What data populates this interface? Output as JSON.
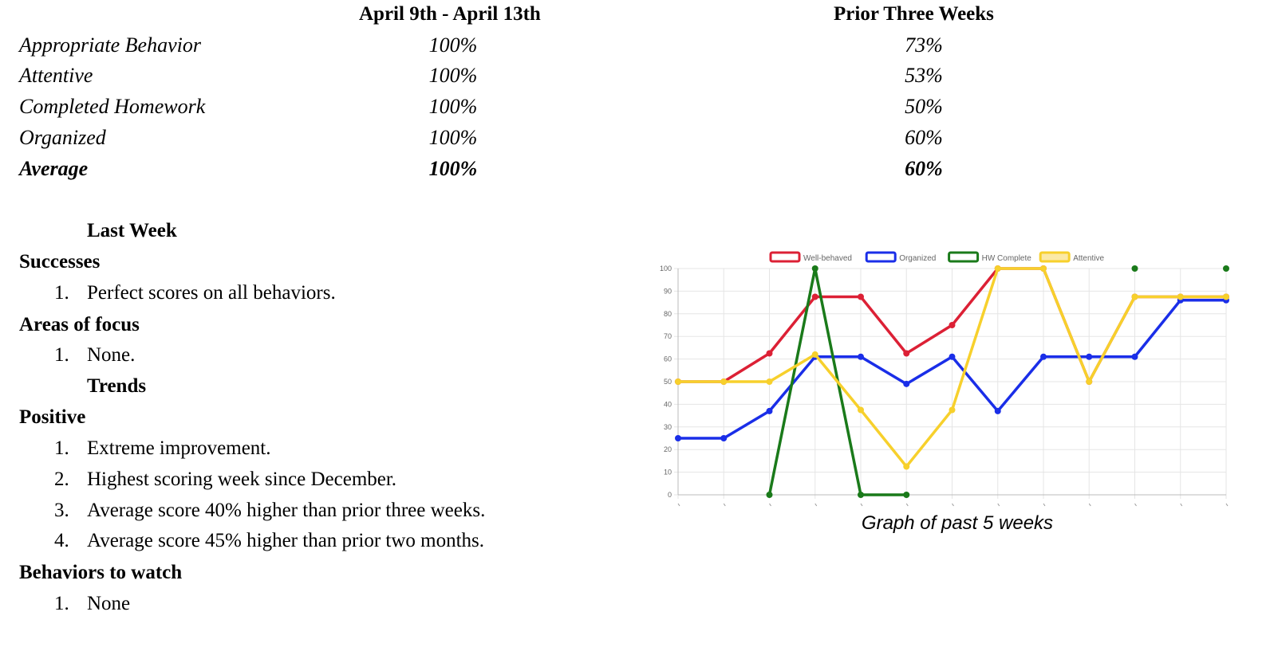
{
  "table": {
    "col1_header": "April 9th - April 13th",
    "col2_header": "Prior Three Weeks",
    "rows": [
      {
        "label": "Appropriate Behavior",
        "current": "100%",
        "prior": "73%"
      },
      {
        "label": "Attentive",
        "current": "100%",
        "prior": "53%"
      },
      {
        "label": "Completed Homework",
        "current": "100%",
        "prior": "50%"
      },
      {
        "label": "Organized",
        "current": "100%",
        "prior": "60%"
      },
      {
        "label": "Average",
        "current": "100%",
        "prior": "60%"
      }
    ]
  },
  "report": {
    "last_week_heading": "Last Week",
    "successes_heading": "Successes",
    "successes": [
      "Perfect scores on all behaviors."
    ],
    "focus_heading": "Areas of focus",
    "focus": [
      "None."
    ],
    "trends_heading": "Trends",
    "positive_heading": "Positive",
    "positive": [
      "Extreme improvement.",
      "Highest scoring week since December.",
      "Average score 40% higher than prior three weeks.",
      "Average score 45% higher than prior two months."
    ],
    "watch_heading": "Behaviors to watch",
    "watch": [
      "None"
    ]
  },
  "chart_caption": "Graph of past 5 weeks",
  "chart_data": {
    "type": "line",
    "x": [
      1,
      2,
      3,
      4,
      5,
      6,
      7,
      8,
      9,
      10,
      11,
      12,
      13
    ],
    "ylim": [
      0,
      100
    ],
    "yticks": [
      0,
      10,
      20,
      30,
      40,
      50,
      60,
      70,
      80,
      90,
      100
    ],
    "grid": true,
    "legend_position": "top",
    "series": [
      {
        "name": "Well-behaved",
        "color": "#dc2035",
        "values": [
          50,
          50,
          62.5,
          87.5,
          87.5,
          62.5,
          75,
          100,
          100,
          50,
          87.5,
          87.5,
          87.5
        ]
      },
      {
        "name": "Organized",
        "color": "#1a2ee8",
        "values": [
          25,
          25,
          37,
          61,
          61,
          49,
          61,
          37,
          61,
          61,
          61,
          86,
          86
        ]
      },
      {
        "name": "HW Complete",
        "color": "#1a7a1a",
        "values": [
          null,
          null,
          0,
          100,
          0,
          0,
          null,
          null,
          null,
          null,
          100,
          null,
          100
        ]
      },
      {
        "name": "Attentive",
        "color": "#f7d02c",
        "values": [
          50,
          50,
          50,
          62,
          37.5,
          12.5,
          37.5,
          100,
          100,
          50,
          87.5,
          87.5,
          87.5
        ]
      }
    ]
  }
}
